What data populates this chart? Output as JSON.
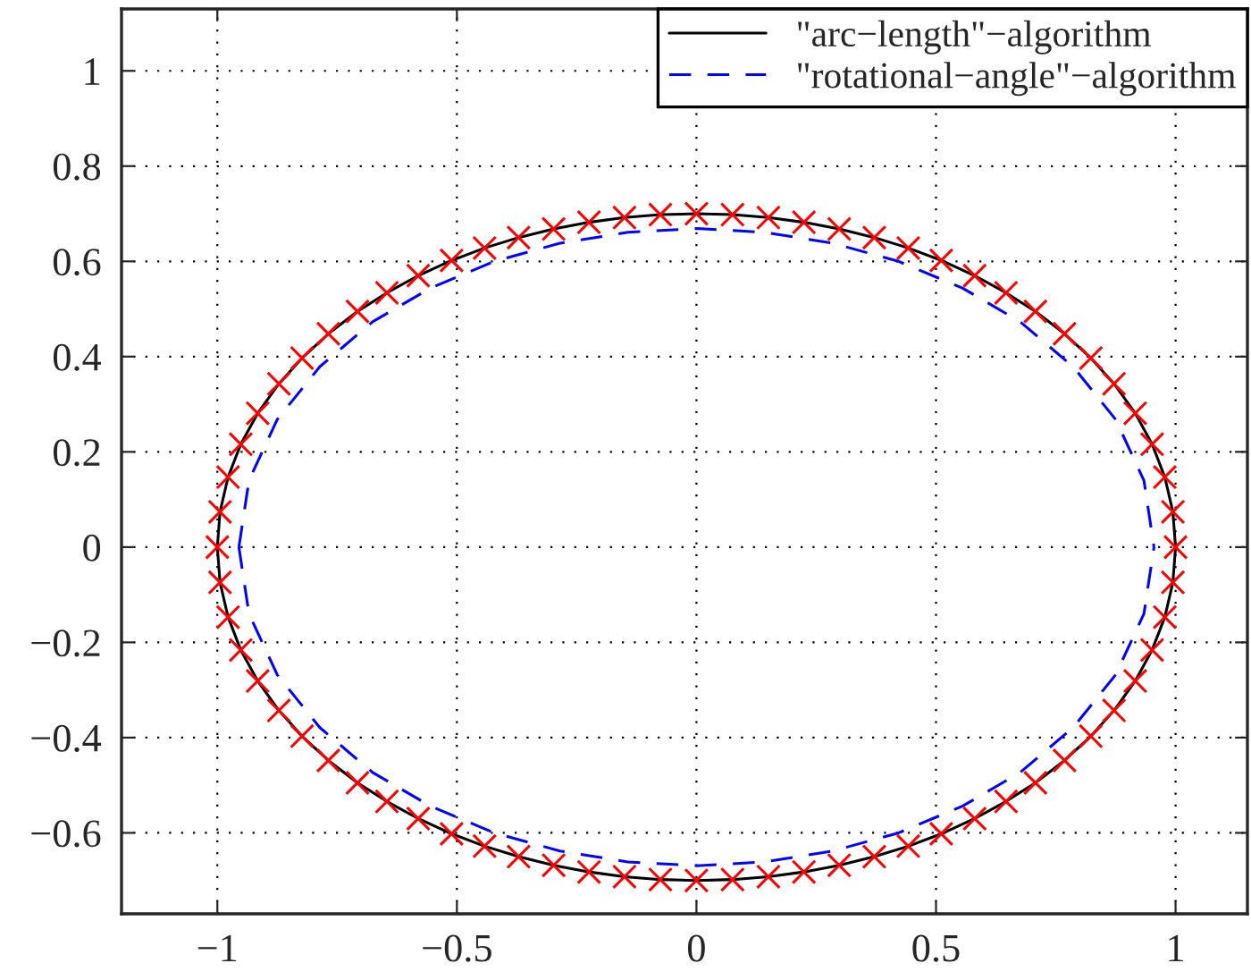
{
  "chart_data": {
    "type": "line",
    "xlim": [
      -1.2,
      1.15
    ],
    "ylim": [
      -0.77,
      1.13
    ],
    "xticks": [
      {
        "value": -1,
        "label": "−1"
      },
      {
        "value": -0.5,
        "label": "−0.5"
      },
      0,
      0.5,
      1
    ],
    "yticks": [
      {
        "value": -0.6,
        "label": "−0.6"
      },
      {
        "value": -0.4,
        "label": "−0.4"
      },
      {
        "value": -0.2,
        "label": "−0.2"
      },
      0,
      0.2,
      0.4,
      0.6,
      0.8,
      1
    ],
    "grid": true,
    "legend": "top right",
    "series": [
      {
        "name": "\"arc−length\"−algorithm",
        "line_style": "solid",
        "color": "#000000",
        "x": [
          -1,
          -0.9944,
          -0.9776,
          -0.9511,
          -0.9158,
          -0.8716,
          -0.8232,
          -0.7683,
          -0.7075,
          -0.6461,
          -0.5807,
          -0.511,
          -0.4422,
          -0.3712,
          -0.298,
          -0.2243,
          -0.1502,
          -0.0753,
          0,
          0.0753,
          0.1502,
          0.2243,
          0.298,
          0.3712,
          0.4422,
          0.511,
          0.5807,
          0.6461,
          0.7075,
          0.7683,
          0.8232,
          0.8716,
          0.9158,
          0.9511,
          0.9776,
          0.9944,
          1,
          null,
          -1,
          -0.9944,
          -0.9776,
          -0.9511,
          -0.9158,
          -0.8716,
          -0.8232,
          -0.7683,
          -0.7075,
          -0.6461,
          -0.5807,
          -0.511,
          -0.4422,
          -0.3712,
          -0.298,
          -0.2243,
          -0.1502,
          -0.0753,
          0,
          0.0753,
          0.1502,
          0.2243,
          0.298,
          0.3712,
          0.4422,
          0.511,
          0.5807,
          0.6461,
          0.7075,
          0.7683,
          0.8232,
          0.8716,
          0.9158,
          0.9511,
          0.9776,
          0.9944,
          1
        ],
        "values": [
          0,
          0.074,
          0.147,
          0.216,
          0.281,
          0.343,
          0.397,
          0.448,
          0.495,
          0.534,
          0.57,
          0.602,
          0.628,
          0.65,
          0.668,
          0.682,
          0.692,
          0.698,
          0.7,
          0.698,
          0.692,
          0.682,
          0.668,
          0.65,
          0.628,
          0.602,
          0.57,
          0.534,
          0.495,
          0.448,
          0.397,
          0.343,
          0.281,
          0.216,
          0.147,
          0.074,
          0,
          null,
          0,
          -0.074,
          -0.147,
          -0.216,
          -0.281,
          -0.343,
          -0.397,
          -0.448,
          -0.495,
          -0.534,
          -0.57,
          -0.602,
          -0.628,
          -0.65,
          -0.668,
          -0.682,
          -0.692,
          -0.698,
          -0.7,
          -0.698,
          -0.692,
          -0.682,
          -0.668,
          -0.65,
          -0.628,
          -0.602,
          -0.57,
          -0.534,
          -0.495,
          -0.448,
          -0.397,
          -0.343,
          -0.281,
          -0.216,
          -0.147,
          -0.074,
          0
        ]
      },
      {
        "name": "\"rotational−angle\"−algorithm",
        "line_style": "dashed",
        "color": "#0000ff",
        "x": [
          -0.955,
          -0.934,
          -0.875,
          -0.786,
          -0.676,
          -0.555,
          -0.422,
          -0.285,
          -0.143,
          0,
          0.143,
          0.285,
          0.422,
          0.555,
          0.676,
          0.786,
          0.875,
          0.934,
          0.955,
          null,
          -0.955,
          -0.934,
          -0.875,
          -0.786,
          -0.676,
          -0.555,
          -0.422,
          -0.285,
          -0.143,
          0,
          0.143,
          0.285,
          0.422,
          0.555,
          0.676,
          0.786,
          0.875,
          0.934,
          0.955
        ],
        "values": [
          0,
          0.14,
          0.268,
          0.379,
          0.473,
          0.544,
          0.6,
          0.638,
          0.661,
          0.669,
          0.661,
          0.638,
          0.6,
          0.544,
          0.473,
          0.379,
          0.268,
          0.14,
          0,
          null,
          0,
          -0.14,
          -0.268,
          -0.379,
          -0.473,
          -0.544,
          -0.6,
          -0.638,
          -0.661,
          -0.669,
          -0.661,
          -0.638,
          -0.6,
          -0.544,
          -0.473,
          -0.379,
          -0.268,
          -0.14,
          0
        ]
      },
      {
        "type": "scatter",
        "marker": "cross",
        "color": "#ff0000",
        "x": [
          0,
          0.0753,
          0.1502,
          0.2243,
          0.298,
          0.3712,
          0.4422,
          0.511,
          0.5807,
          0.6461,
          0.7075,
          0.7683,
          0.8232,
          0.8716,
          0.9158,
          0.9511,
          0.9776,
          0.9944,
          1,
          0.9944,
          0.9776,
          0.9511,
          0.9158,
          0.8716,
          0.8232,
          0.7683,
          0.7075,
          0.6461,
          0.5807,
          0.511,
          0.4422,
          0.3712,
          0.298,
          0.2243,
          0.1502,
          0.0753,
          0,
          -0.0753,
          -0.1502,
          -0.2243,
          -0.298,
          -0.3712,
          -0.4422,
          -0.511,
          -0.5807,
          -0.6461,
          -0.7075,
          -0.7683,
          -0.8232,
          -0.8716,
          -0.9158,
          -0.9511,
          -0.9776,
          -0.9944,
          -1,
          -0.9944,
          -0.9776,
          -0.9511,
          -0.9158,
          -0.8716,
          -0.8232,
          -0.7683,
          -0.7075,
          -0.6461,
          -0.5807,
          -0.511,
          -0.4422,
          -0.3712,
          -0.298,
          -0.2243,
          -0.1502,
          -0.0753
        ],
        "values": [
          0.7,
          0.698,
          0.692,
          0.682,
          0.668,
          0.65,
          0.628,
          0.602,
          0.57,
          0.534,
          0.495,
          0.448,
          0.397,
          0.343,
          0.281,
          0.216,
          0.147,
          0.074,
          0,
          -0.074,
          -0.147,
          -0.216,
          -0.281,
          -0.343,
          -0.397,
          -0.448,
          -0.495,
          -0.534,
          -0.57,
          -0.602,
          -0.628,
          -0.65,
          -0.668,
          -0.682,
          -0.692,
          -0.698,
          -0.7,
          -0.698,
          -0.692,
          -0.682,
          -0.668,
          -0.65,
          -0.628,
          -0.602,
          -0.57,
          -0.534,
          -0.495,
          -0.448,
          -0.397,
          -0.343,
          -0.281,
          -0.216,
          -0.147,
          -0.074,
          0,
          0.074,
          0.147,
          0.216,
          0.281,
          0.343,
          0.397,
          0.448,
          0.495,
          0.534,
          0.57,
          0.602,
          0.628,
          0.65,
          0.668,
          0.682,
          0.692,
          0.698
        ]
      }
    ]
  }
}
